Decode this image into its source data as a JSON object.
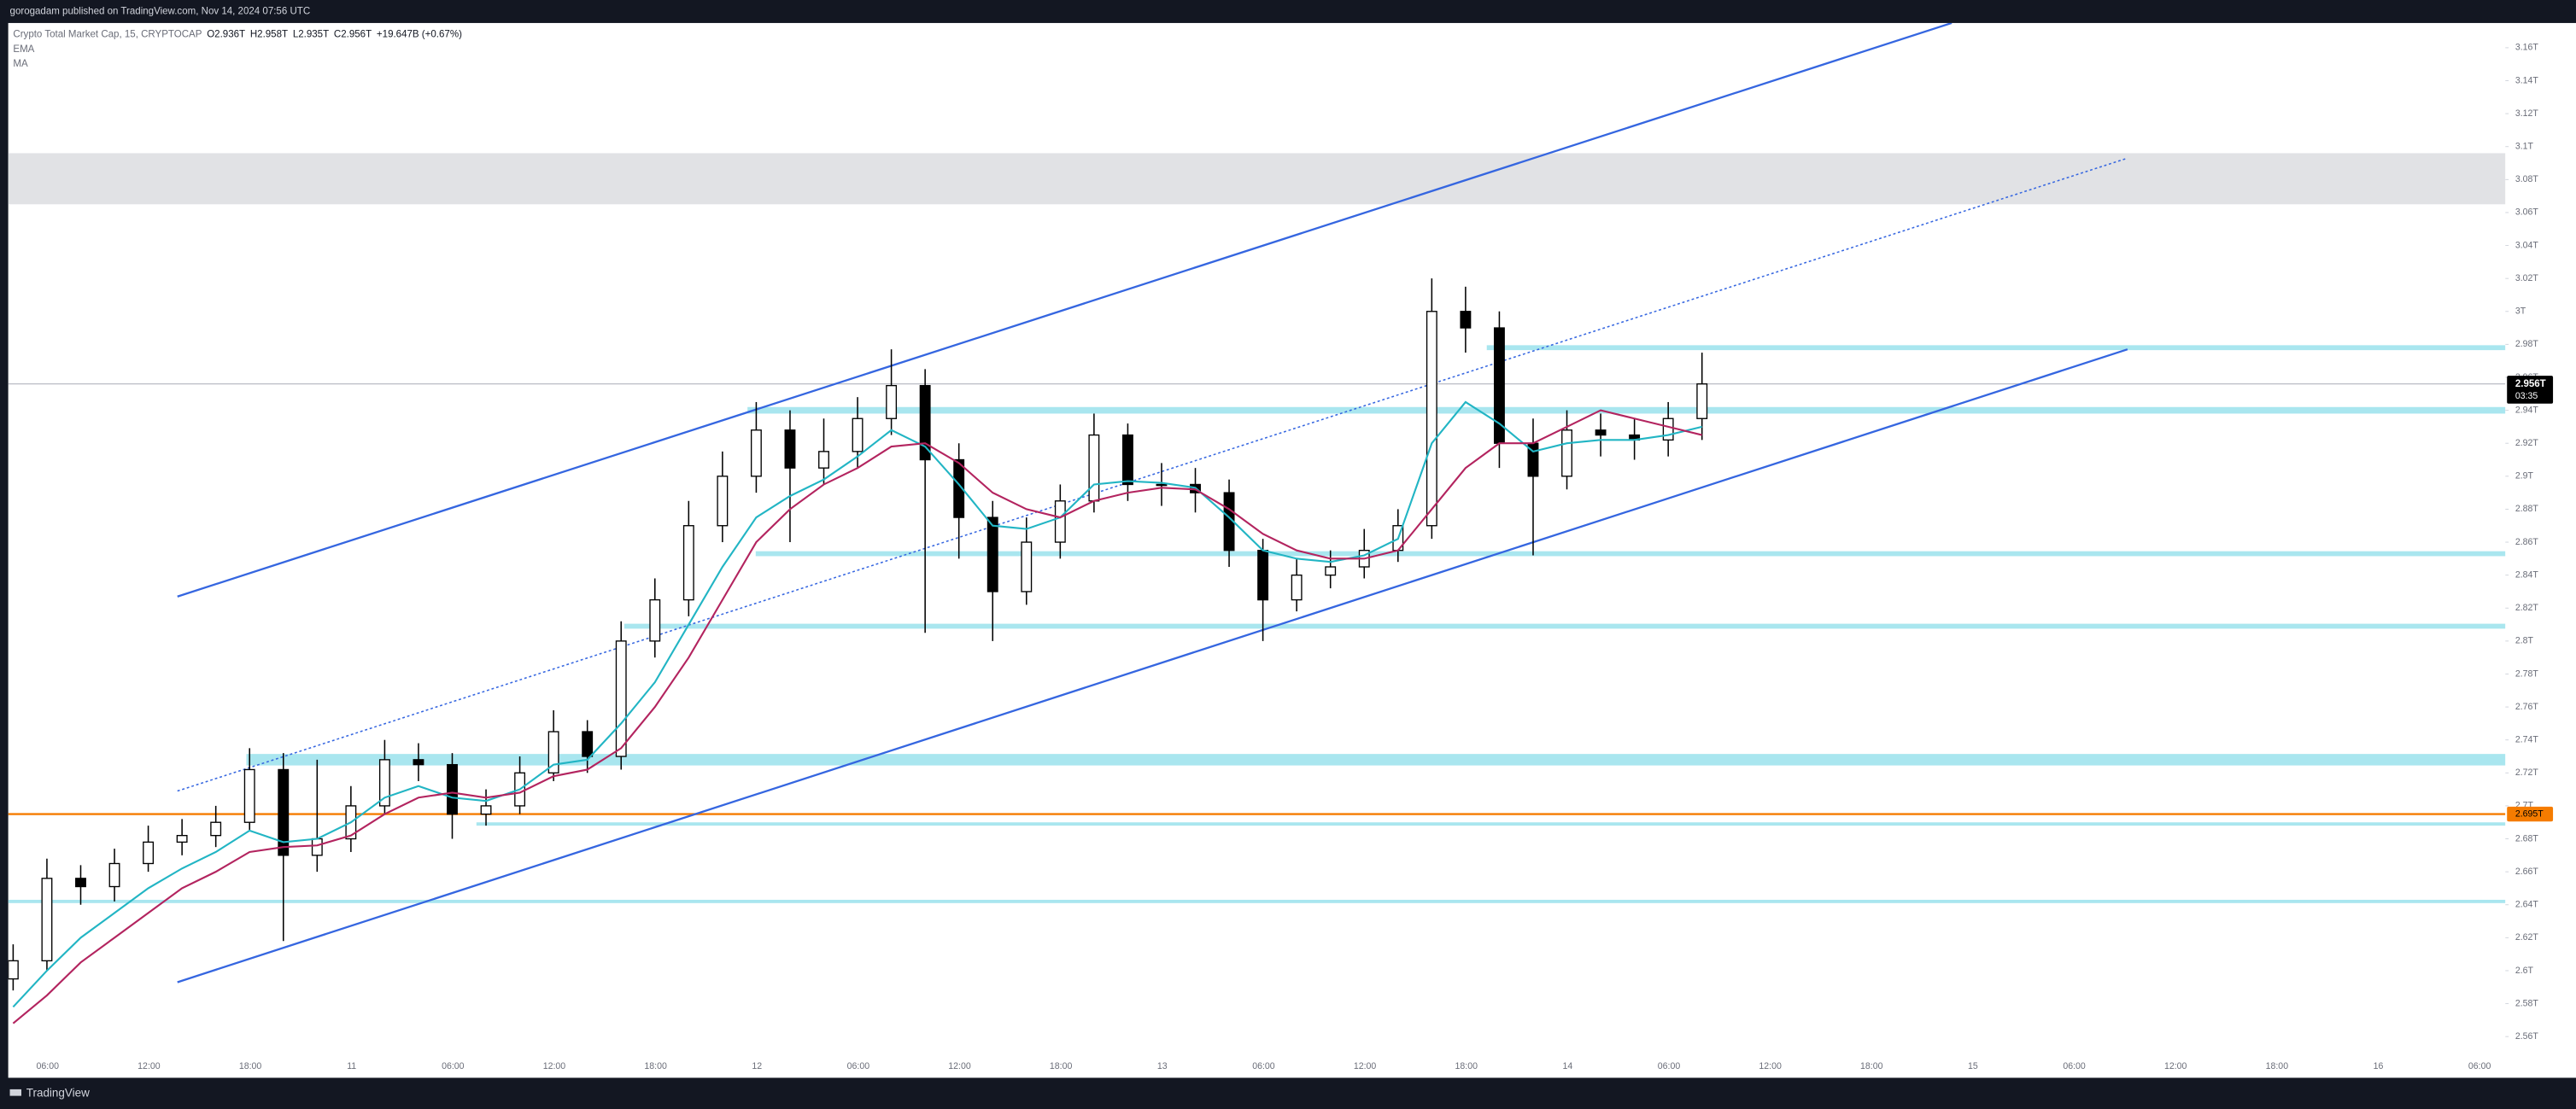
{
  "header": {
    "publisher": "gorogadam published on TradingView.com, Nov 14, 2024 07:56 UTC",
    "brand": "TradingView"
  },
  "chart_data": {
    "type": "candlestick",
    "symbol": "Crypto Total Market Cap, 15, CRYPTOCAP",
    "ohlc": [
      "O2.936T",
      "H2.958T",
      "L2.935T",
      "C2.956T"
    ],
    "change": "+19.647B (+0.67%)",
    "x_ticks": [
      "06:00",
      "12:00",
      "18:00",
      "11",
      "06:00",
      "12:00",
      "18:00",
      "12",
      "06:00",
      "12:00",
      "18:00",
      "13",
      "06:00",
      "12:00",
      "18:00",
      "14",
      "06:00",
      "12:00",
      "18:00",
      "15",
      "06:00",
      "12:00",
      "18:00",
      "16",
      "06:00"
    ],
    "ylim": [
      2.536,
      3.175
    ],
    "yticks": [
      {
        "value": 2.56,
        "label": "2.56T"
      },
      {
        "value": 2.58,
        "label": "2.58T"
      },
      {
        "value": 2.6,
        "label": "2.6T"
      },
      {
        "value": 2.62,
        "label": "2.62T"
      },
      {
        "value": 2.64,
        "label": "2.64T"
      },
      {
        "value": 2.66,
        "label": "2.66T"
      },
      {
        "value": 2.68,
        "label": "2.68T"
      },
      {
        "value": 2.7,
        "label": "2.7T"
      },
      {
        "value": 2.72,
        "label": "2.72T"
      },
      {
        "value": 2.74,
        "label": "2.74T"
      },
      {
        "value": 2.76,
        "label": "2.76T"
      },
      {
        "value": 2.78,
        "label": "2.78T"
      },
      {
        "value": 2.8,
        "label": "2.8T"
      },
      {
        "value": 2.82,
        "label": "2.82T"
      },
      {
        "value": 2.84,
        "label": "2.84T"
      },
      {
        "value": 2.86,
        "label": "2.86T"
      },
      {
        "value": 2.88,
        "label": "2.88T"
      },
      {
        "value": 2.9,
        "label": "2.9T"
      },
      {
        "value": 2.92,
        "label": "2.92T"
      },
      {
        "value": 2.94,
        "label": "2.94T"
      },
      {
        "value": 2.96,
        "label": "2.96T"
      },
      {
        "value": 2.98,
        "label": "2.98T"
      },
      {
        "value": 3,
        "label": "3T"
      },
      {
        "value": 3.02,
        "label": "3.02T"
      },
      {
        "value": 3.04,
        "label": "3.04T"
      },
      {
        "value": 3.06,
        "label": "3.06T"
      },
      {
        "value": 3.08,
        "label": "3.08T"
      },
      {
        "value": 3.1,
        "label": "3.1T"
      },
      {
        "value": 3.12,
        "label": "3.12T"
      },
      {
        "value": 3.14,
        "label": "3.14T"
      },
      {
        "value": 3.16,
        "label": "3.16T"
      }
    ],
    "open": [
      2.595,
      2.606,
      2.656,
      2.651,
      2.665,
      2.678,
      2.682,
      2.69,
      2.722,
      2.67,
      2.68,
      2.7,
      2.728,
      2.725,
      2.695,
      2.7,
      2.72,
      2.745,
      2.73,
      2.8,
      2.825,
      2.87,
      2.9,
      2.928,
      2.905,
      2.915,
      2.935,
      2.955,
      2.91,
      2.875,
      2.83,
      2.86,
      2.885,
      2.925,
      2.895,
      2.895,
      2.89,
      2.855,
      2.825,
      2.84,
      2.845,
      2.855,
      2.87,
      3.0,
      2.99,
      2.92,
      2.9,
      2.928,
      2.925,
      2.922,
      2.935
    ],
    "high": [
      2.616,
      2.668,
      2.664,
      2.674,
      2.688,
      2.692,
      2.7,
      2.735,
      2.732,
      2.728,
      2.712,
      2.74,
      2.738,
      2.732,
      2.71,
      2.73,
      2.758,
      2.752,
      2.812,
      2.838,
      2.885,
      2.915,
      2.945,
      2.94,
      2.935,
      2.948,
      2.977,
      2.965,
      2.92,
      2.885,
      2.875,
      2.895,
      2.938,
      2.932,
      2.908,
      2.905,
      2.898,
      2.862,
      2.85,
      2.855,
      2.868,
      2.88,
      3.02,
      3.015,
      3.0,
      2.935,
      2.94,
      2.938,
      2.935,
      2.945,
      2.975
    ],
    "low": [
      2.588,
      2.6,
      2.64,
      2.642,
      2.66,
      2.67,
      2.675,
      2.685,
      2.618,
      2.66,
      2.672,
      2.695,
      2.715,
      2.68,
      2.688,
      2.695,
      2.715,
      2.72,
      2.722,
      2.79,
      2.815,
      2.86,
      2.89,
      2.86,
      2.895,
      2.905,
      2.925,
      2.805,
      2.85,
      2.8,
      2.822,
      2.85,
      2.878,
      2.885,
      2.882,
      2.878,
      2.845,
      2.8,
      2.818,
      2.832,
      2.838,
      2.848,
      2.862,
      2.975,
      2.905,
      2.852,
      2.892,
      2.912,
      2.91,
      2.912,
      2.922
    ],
    "close": [
      2.606,
      2.656,
      2.651,
      2.665,
      2.678,
      2.682,
      2.69,
      2.722,
      2.67,
      2.68,
      2.7,
      2.728,
      2.725,
      2.695,
      2.7,
      2.72,
      2.745,
      2.73,
      2.8,
      2.825,
      2.87,
      2.9,
      2.928,
      2.905,
      2.915,
      2.935,
      2.955,
      2.91,
      2.875,
      2.83,
      2.86,
      2.885,
      2.925,
      2.895,
      2.895,
      2.89,
      2.855,
      2.825,
      2.84,
      2.845,
      2.855,
      2.87,
      3.0,
      2.99,
      2.92,
      2.9,
      2.928,
      2.925,
      2.922,
      2.935,
      2.956
    ],
    "series": [
      {
        "name": "EMA",
        "color": "#22b5c4",
        "values": [
          2.578,
          2.6,
          2.62,
          2.635,
          2.65,
          2.662,
          2.672,
          2.685,
          2.678,
          2.68,
          2.69,
          2.705,
          2.712,
          2.705,
          2.703,
          2.71,
          2.725,
          2.728,
          2.75,
          2.775,
          2.81,
          2.845,
          2.875,
          2.888,
          2.898,
          2.912,
          2.928,
          2.918,
          2.895,
          2.87,
          2.868,
          2.875,
          2.895,
          2.897,
          2.896,
          2.893,
          2.875,
          2.855,
          2.85,
          2.848,
          2.852,
          2.862,
          2.92,
          2.945,
          2.932,
          2.915,
          2.92,
          2.922,
          2.922,
          2.925,
          2.93
        ]
      },
      {
        "name": "MA",
        "color": "#b3245f",
        "values": [
          2.568,
          2.585,
          2.605,
          2.62,
          2.635,
          2.65,
          2.66,
          2.672,
          2.675,
          2.676,
          2.682,
          2.695,
          2.705,
          2.708,
          2.705,
          2.708,
          2.718,
          2.722,
          2.735,
          2.76,
          2.79,
          2.825,
          2.86,
          2.88,
          2.895,
          2.905,
          2.918,
          2.92,
          2.908,
          2.89,
          2.88,
          2.875,
          2.885,
          2.89,
          2.893,
          2.892,
          2.88,
          2.865,
          2.855,
          2.85,
          2.85,
          2.855,
          2.88,
          2.905,
          2.92,
          2.92,
          2.93,
          2.94,
          2.935,
          2.93,
          2.925
        ]
      }
    ],
    "up_color": "#ffffff",
    "down_color": "#000000",
    "levels": [
      2.978,
      2.94,
      2.853,
      2.809,
      2.728,
      2.689,
      2.642
    ],
    "level_color": "#a9e6ef",
    "zone": [
      3.065,
      3.096
    ],
    "zone_color": "#e1e2e5",
    "trend_lines": [
      {
        "from": 2.593,
        "to": 2.977
      },
      {
        "from": 2.827,
        "to": 3.175
      },
      {
        "from": 2.709,
        "to": 3.093,
        "dotted": true
      }
    ],
    "trend_color": "#3566e0",
    "horizontal_line": {
      "value": 2.695,
      "label": "2.695T",
      "color": "#f57c00"
    },
    "last_price": {
      "value": 2.956,
      "label": "2.956T",
      "countdown": "03:35"
    }
  }
}
